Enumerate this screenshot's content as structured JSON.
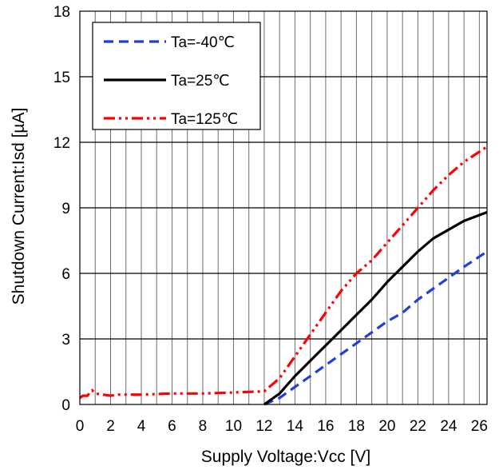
{
  "chart_data": {
    "type": "line",
    "xlabel": "Supply Voltage:Vcc [V]",
    "ylabel": "Shutdown  Current:Isd [µA]",
    "xlim": [
      0,
      26.5
    ],
    "ylim": [
      0,
      18
    ],
    "x_ticks": [
      "0",
      "2",
      "4",
      "6",
      "8",
      "10",
      "12",
      "14",
      "16",
      "18",
      "20",
      "22",
      "24",
      "26"
    ],
    "y_ticks": [
      "0",
      "3",
      "6",
      "9",
      "12",
      "15",
      "18"
    ],
    "x_grid_step": 1,
    "y_grid_step": 3,
    "grid": true,
    "legend_position": "top-left",
    "series": [
      {
        "name": "Ta=-40℃",
        "color": "#1f3fdb",
        "style": "dashed",
        "x": [
          12.0,
          13.0,
          14.0,
          15.0,
          16.0,
          17.0,
          18.0,
          19.0,
          20.0,
          21.0,
          22.0,
          23.0,
          24.0,
          25.0,
          26.5
        ],
        "y": [
          0.0,
          0.3,
          0.8,
          1.3,
          1.8,
          2.3,
          2.8,
          3.3,
          3.8,
          4.2,
          4.8,
          5.3,
          5.8,
          6.3,
          7.0
        ]
      },
      {
        "name": "Ta=25℃",
        "color": "#000000",
        "style": "solid",
        "x": [
          12.0,
          13.0,
          14.0,
          15.0,
          16.0,
          17.0,
          18.0,
          19.0,
          20.0,
          21.0,
          22.0,
          23.0,
          24.0,
          25.0,
          26.5
        ],
        "y": [
          0.0,
          0.5,
          1.3,
          2.0,
          2.7,
          3.4,
          4.1,
          4.8,
          5.6,
          6.3,
          7.0,
          7.6,
          8.0,
          8.4,
          8.8
        ]
      },
      {
        "name": "Ta=125℃",
        "color": "#ff0000",
        "style": "dash-dot-dot",
        "x": [
          0.0,
          0.2,
          0.5,
          0.7,
          0.8,
          1.0,
          1.5,
          2.0,
          2.5,
          3.0,
          4.0,
          6.0,
          8.0,
          10.0,
          12.0,
          13.0,
          14.0,
          15.0,
          16.0,
          17.0,
          18.0,
          19.0,
          20.0,
          21.0,
          22.0,
          23.0,
          24.0,
          25.0,
          26.5
        ],
        "y": [
          0.3,
          0.4,
          0.4,
          0.6,
          0.65,
          0.5,
          0.45,
          0.4,
          0.45,
          0.45,
          0.45,
          0.5,
          0.5,
          0.55,
          0.6,
          1.2,
          2.2,
          3.2,
          4.2,
          5.2,
          6.0,
          6.6,
          7.4,
          8.2,
          9.0,
          9.8,
          10.5,
          11.1,
          11.8
        ]
      }
    ]
  }
}
